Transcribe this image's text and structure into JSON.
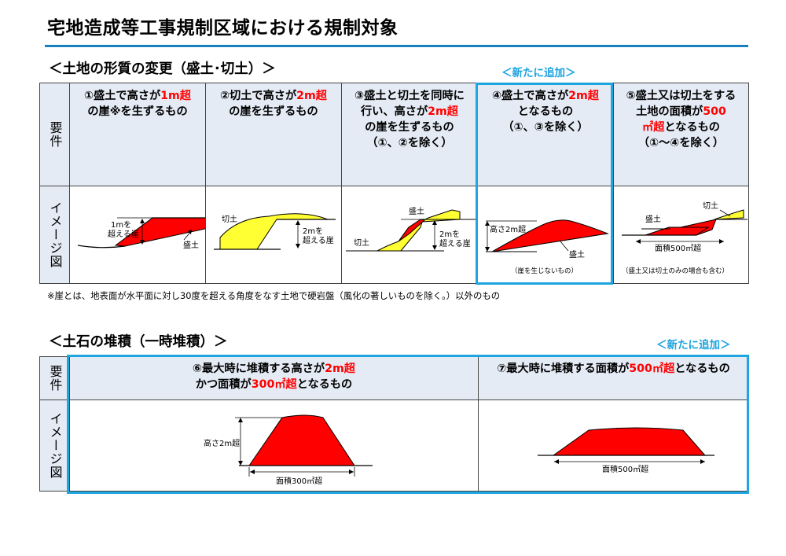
{
  "title": "宅地造成等工事規制区域における規制対象",
  "section1": {
    "heading": "＜土地の形質の変更（盛土･切土）＞",
    "new_tag": "＜新たに追加＞",
    "row_label_req": "要件",
    "row_label_img": "イメージ図",
    "columns": [
      {
        "l1a": "①盛土で高さが",
        "l1b": "1m超",
        "l2": "の崖※を生ずるもの",
        "img": {
          "height": "1mを",
          "height2": "超える崖",
          "fill": "盛土"
        }
      },
      {
        "l1a": "②切土で高さが",
        "l1b": "2m超",
        "l2": "の崖を生ずるもの",
        "img": {
          "cut": "切土",
          "height": "2mを",
          "height2": "超える崖"
        }
      },
      {
        "l1": "③盛土と切土を同時に",
        "l2a": "行い、高さが",
        "l2b": "2m超",
        "l3": "の崖を生ずるもの",
        "l4": "（①、②を除く）",
        "img": {
          "fill": "盛土",
          "cut": "切土",
          "height": "2mを",
          "height2": "超える崖"
        }
      },
      {
        "l1a": "④盛土で高さが",
        "l1b": "2m超",
        "l2": "となるもの",
        "l3": "（①、③を除く）",
        "img": {
          "height": "高さ2m超",
          "fill": "盛土",
          "caption": "（崖を生じないもの）"
        }
      },
      {
        "l1": "⑤盛土又は切土をする",
        "l2a": "土地の面積が",
        "l2b": "500",
        "l3a": "㎡超",
        "l3b": "となるもの",
        "l4": "（①～④を除く）",
        "img": {
          "cut": "切土",
          "fill": "盛土",
          "area": "面積500㎡超",
          "caption": "（盛土又は切土のみの場合も含む）"
        }
      }
    ],
    "footnote": "※崖とは、地表面が水平面に対し30度を超える角度をなす土地で硬岩盤（風化の著しいものを除く。）以外のもの"
  },
  "section2": {
    "heading": "＜土石の堆積（一時堆積）＞",
    "new_tag": "＜新たに追加＞",
    "row_label_req": "要件",
    "row_label_img": "イメージ図",
    "columns": [
      {
        "l1a": "⑥最大時に堆積する高さが",
        "l1b": "2m超",
        "l2a": "かつ面積が",
        "l2b": "300㎡超",
        "l2c": "となるもの",
        "img": {
          "height": "高さ2m超",
          "area": "面積300㎡超"
        }
      },
      {
        "l1a": "⑦最大時に堆積する面積が",
        "l1b": "500㎡超",
        "l1c": "となるもの",
        "img": {
          "area": "面積500㎡超"
        }
      }
    ]
  },
  "colors": {
    "accent_rule": "#1a7fbf",
    "highlight": "#1fa5e0",
    "fill_red": "#ff0000",
    "cut_yellow": "#ffff33",
    "emphasis": "#ff0000",
    "req_bg": "#e4ebf5"
  }
}
